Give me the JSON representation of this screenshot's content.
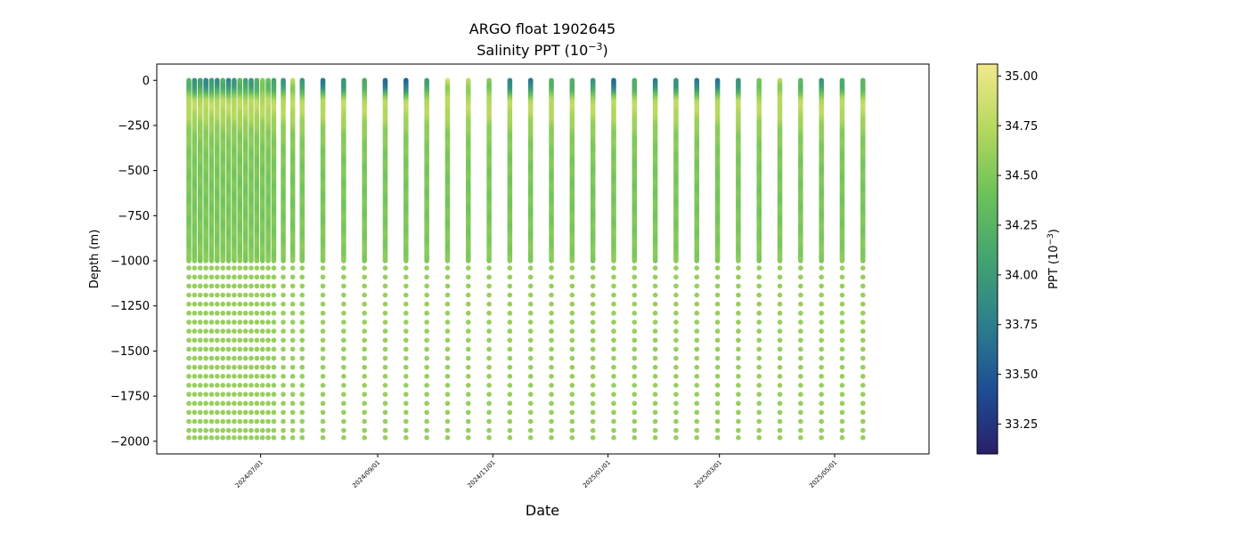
{
  "chart_data": {
    "type": "scatter",
    "title": "ARGO float 1902645",
    "subtitle": "Salinity PPT (10",
    "subtitle_exp": "−3",
    "subtitle_end": ")",
    "xlabel": "Date",
    "ylabel": "Depth (m)",
    "colorbar_label": "PPT (10",
    "colorbar_label_exp": "−3",
    "colorbar_label_end": ")",
    "colormap": "summer-like: navy -> teal -> green -> yellow",
    "color_stops": [
      "#2a1f6b",
      "#1d4e94",
      "#2d7f8d",
      "#43a370",
      "#6cc25a",
      "#b5d85e",
      "#f2e88c"
    ],
    "grid": false,
    "xlim": [
      "2024-05-07",
      "2025-06-20"
    ],
    "ylim": [
      -2070,
      90
    ],
    "clim": [
      33.1,
      35.06
    ],
    "x_ticks": [
      "2024/07/01",
      "2024/09/01",
      "2024/11/01",
      "2025/01/01",
      "2025/03/01",
      "2025/05/01"
    ],
    "y_ticks": [
      0,
      -250,
      -500,
      -750,
      -1000,
      -1250,
      -1500,
      -1750,
      -2000
    ],
    "y_tick_labels": [
      "0",
      "−250",
      "−500",
      "−750",
      "−1000",
      "−1250",
      "−1500",
      "−1750",
      "−2000"
    ],
    "colorbar_ticks": [
      33.25,
      33.5,
      33.75,
      34.0,
      34.25,
      34.5,
      34.75,
      35.0
    ],
    "colorbar_tick_labels": [
      "33.25",
      "33.50",
      "33.75",
      "34.00",
      "34.25",
      "34.50",
      "34.75",
      "35.00"
    ],
    "profile_dates": [
      "2024-05-24",
      "2024-05-27",
      "2024-05-30",
      "2024-06-02",
      "2024-06-05",
      "2024-06-08",
      "2024-06-11",
      "2024-06-14",
      "2024-06-17",
      "2024-06-20",
      "2024-06-23",
      "2024-06-26",
      "2024-06-29",
      "2024-07-02",
      "2024-07-05",
      "2024-07-08",
      "2024-07-13",
      "2024-07-18",
      "2024-07-23",
      "2024-08-03",
      "2024-08-14",
      "2024-08-25",
      "2024-09-05",
      "2024-09-16",
      "2024-09-27",
      "2024-10-08",
      "2024-10-19",
      "2024-10-30",
      "2024-11-10",
      "2024-11-21",
      "2024-12-02",
      "2024-12-13",
      "2024-12-24",
      "2025-01-04",
      "2025-01-15",
      "2025-01-26",
      "2025-02-06",
      "2025-02-17",
      "2025-02-28",
      "2025-03-11",
      "2025-03-22",
      "2025-04-02",
      "2025-04-13",
      "2025-04-24",
      "2025-05-05",
      "2025-05-16"
    ],
    "profile_surface_salinity": [
      34.3,
      33.9,
      34.1,
      33.8,
      34.0,
      33.9,
      34.2,
      33.8,
      34.0,
      34.3,
      34.1,
      34.0,
      34.2,
      34.6,
      34.4,
      34.1,
      34.0,
      34.8,
      34.0,
      33.7,
      33.9,
      34.2,
      33.6,
      33.5,
      34.1,
      34.9,
      34.8,
      34.6,
      33.8,
      33.7,
      34.3,
      34.2,
      34.0,
      33.6,
      34.2,
      33.8,
      33.9,
      33.7,
      33.7,
      33.9,
      34.5,
      34.8,
      34.3,
      34.0,
      34.2,
      34.3
    ],
    "depth_levels": [
      0,
      -10,
      -25,
      -50,
      -75,
      -100,
      -150,
      -200,
      -250,
      -300,
      -400,
      -500,
      -600,
      -700,
      -800,
      -900,
      -1000
    ],
    "salinity_profile": [
      34.2,
      34.0,
      34.0,
      34.2,
      34.5,
      34.7,
      34.78,
      34.72,
      34.62,
      34.55,
      34.5,
      34.48,
      34.47,
      34.47,
      34.48,
      34.5,
      34.52
    ],
    "deep_depth_levels": [
      -1040,
      -1090,
      -1140,
      -1190,
      -1240,
      -1290,
      -1340,
      -1390,
      -1440,
      -1490,
      -1540,
      -1590,
      -1640,
      -1690,
      -1740,
      -1790,
      -1840,
      -1890,
      -1940,
      -1980
    ],
    "deep_salinity": 34.6
  }
}
